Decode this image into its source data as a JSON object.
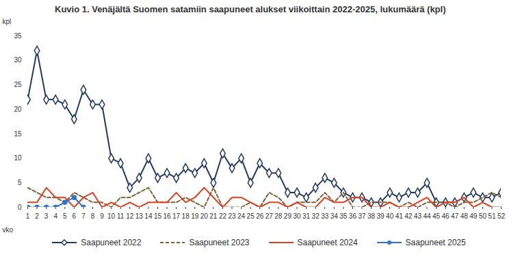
{
  "chart_data": {
    "type": "line",
    "title": "Kuvio 1. Venäjältä Suomen satamiin saapuneet alukset viikoittain 2022-2025, lukumäärä (kpl)",
    "x_label": "vko",
    "y_label": "kpl",
    "x": [
      1,
      2,
      3,
      4,
      5,
      6,
      7,
      8,
      9,
      10,
      11,
      12,
      13,
      14,
      15,
      16,
      17,
      18,
      19,
      20,
      21,
      22,
      23,
      24,
      25,
      26,
      27,
      28,
      29,
      30,
      31,
      32,
      33,
      34,
      35,
      36,
      37,
      38,
      39,
      40,
      41,
      42,
      43,
      44,
      45,
      46,
      47,
      48,
      49,
      50,
      51,
      52
    ],
    "xlim": [
      1,
      52
    ],
    "xticks": [
      1,
      2,
      3,
      4,
      5,
      6,
      7,
      8,
      9,
      10,
      11,
      12,
      13,
      14,
      15,
      16,
      17,
      18,
      19,
      20,
      21,
      22,
      23,
      24,
      25,
      26,
      27,
      28,
      29,
      30,
      31,
      32,
      33,
      34,
      35,
      36,
      37,
      38,
      39,
      40,
      41,
      42,
      43,
      44,
      45,
      46,
      47,
      48,
      49,
      50,
      51,
      52
    ],
    "ylim": [
      0,
      35
    ],
    "yticks": [
      0,
      5,
      10,
      15,
      20,
      25,
      30,
      35
    ],
    "grid": false,
    "legend": "bottom",
    "series": [
      {
        "name": "Saapuneet 2022",
        "color": "#1f3864",
        "marker": "diamond",
        "line_style": "solid",
        "values": [
          22,
          32,
          22,
          22,
          21,
          18,
          24,
          21,
          21,
          10,
          9,
          4,
          6,
          10,
          6,
          7,
          6,
          8,
          7,
          9,
          5,
          11,
          8,
          10,
          5,
          9,
          7,
          7,
          3,
          3,
          2,
          4,
          6,
          5,
          3,
          2,
          2,
          1,
          1,
          3,
          2,
          3,
          3,
          5,
          1,
          1,
          1,
          2,
          3,
          2,
          2,
          3
        ]
      },
      {
        "name": "Saapuneet 2023",
        "color": "#7f6030",
        "marker": "none",
        "line_style": "dashed",
        "values": [
          4,
          3,
          2,
          2,
          1,
          3,
          2,
          1,
          1,
          0,
          2,
          2,
          3,
          4,
          1,
          1,
          1,
          2,
          1,
          0,
          4,
          0,
          0,
          0,
          1,
          0,
          3,
          2,
          0,
          1,
          1,
          1,
          3,
          1,
          3,
          0,
          0,
          1,
          1,
          1,
          0,
          1,
          0,
          1,
          1,
          1,
          0,
          1,
          1,
          2,
          3,
          2
        ]
      },
      {
        "name": "Saapuneet 2024",
        "color": "#e0401f",
        "marker": "none",
        "line_style": "solid",
        "values": [
          1,
          1,
          4,
          2,
          2,
          0,
          2,
          3,
          0,
          1,
          0,
          1,
          0,
          1,
          1,
          1,
          3,
          1,
          2,
          4,
          2,
          0,
          2,
          2,
          1,
          0,
          1,
          1,
          0,
          1,
          0,
          0,
          2,
          1,
          1,
          2,
          2,
          0,
          0,
          1,
          0,
          0,
          1,
          2,
          0,
          1,
          1,
          2,
          0,
          1,
          0,
          0
        ]
      },
      {
        "name": "Saapuneet 2025",
        "color": "#2e75d0",
        "marker": "circle",
        "line_style": "solid",
        "values": [
          0,
          0,
          0,
          0,
          1,
          2,
          0,
          null,
          null,
          null,
          null,
          null,
          null,
          null,
          null,
          null,
          null,
          null,
          null,
          null,
          null,
          null,
          null,
          null,
          null,
          null,
          null,
          null,
          null,
          null,
          null,
          null,
          null,
          null,
          null,
          null,
          null,
          null,
          null,
          null,
          null,
          null,
          null,
          null,
          null,
          null,
          null,
          null,
          null,
          null,
          null,
          null
        ]
      }
    ]
  }
}
